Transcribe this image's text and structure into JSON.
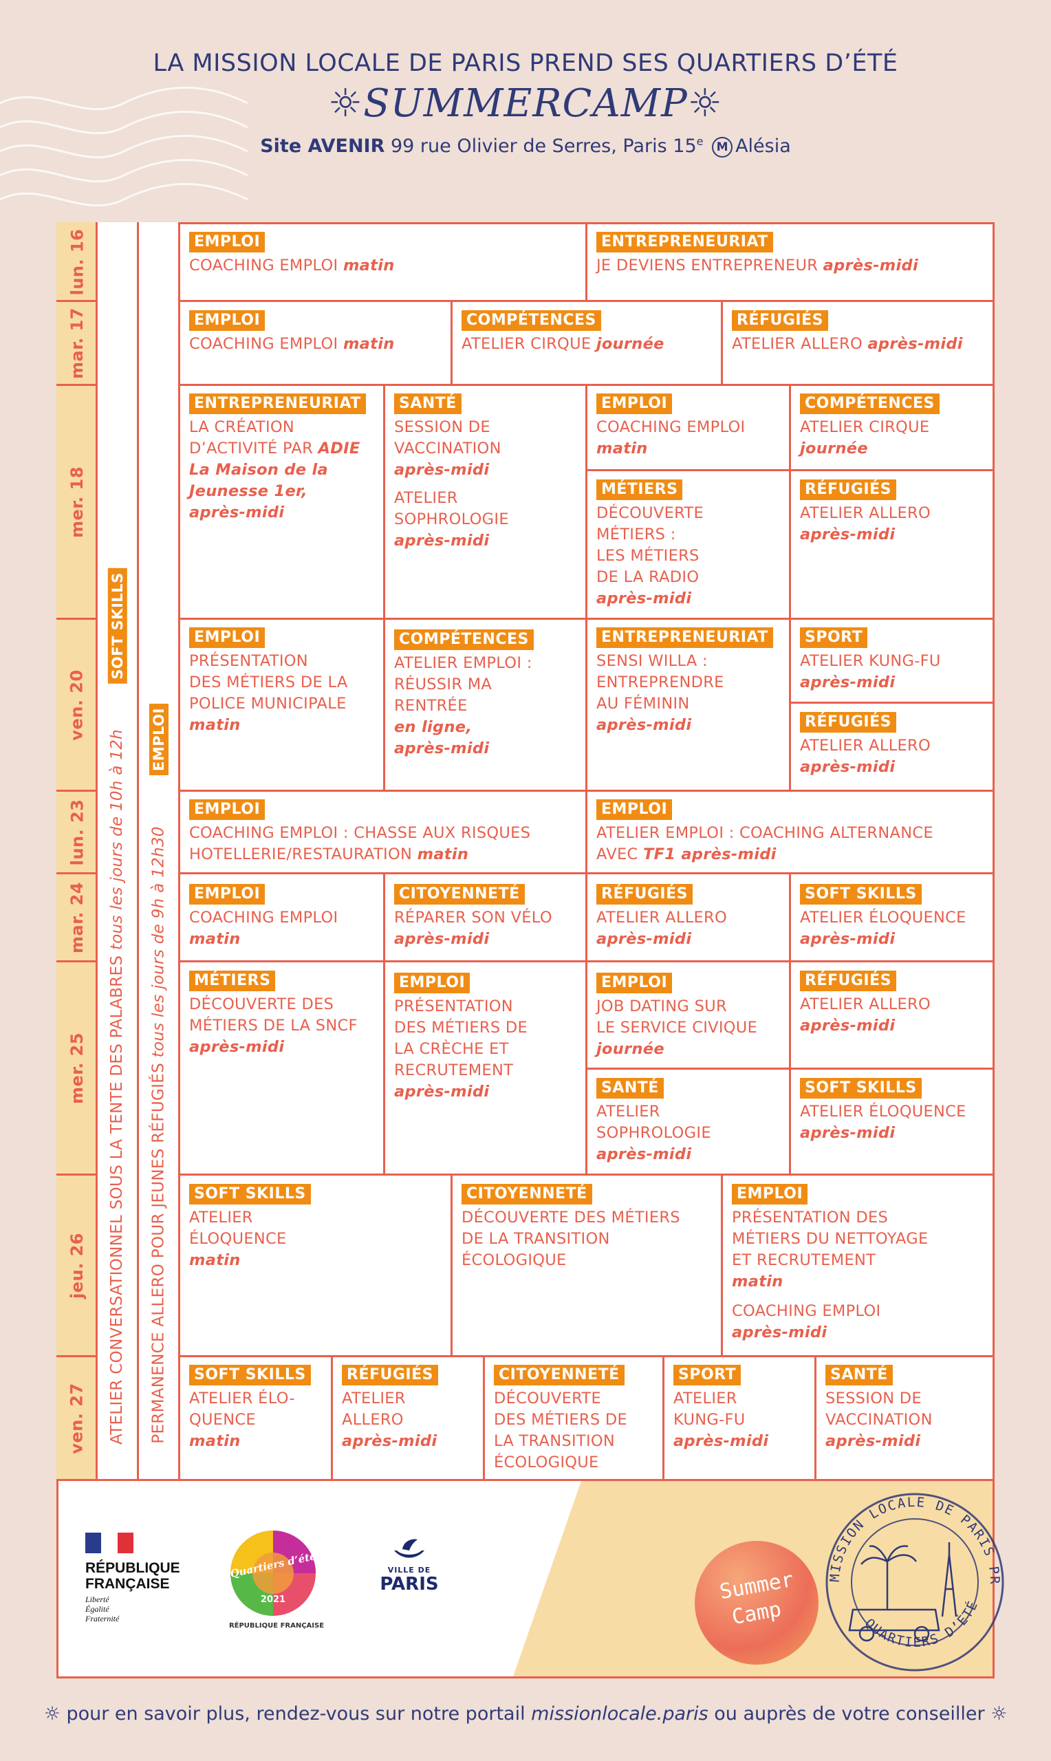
{
  "header": {
    "line1": "LA MISSION LOCALE DE PARIS PREND SES QUARTIERS D’ÉTÉ",
    "line2": "SUMMERCAMP",
    "site_bold": "Site AVENIR",
    "site_address": "99 rue Olivier de Serres, Paris 15",
    "site_sup": "e",
    "metro_letter": "M",
    "metro_station": "Alésia"
  },
  "days": [
    "lun. 16",
    "mar. 17",
    "mer. 18",
    "ven. 20",
    "lun. 23",
    "mar. 24",
    "mer. 25",
    "jeu. 26",
    "ven. 27"
  ],
  "side": {
    "col1_text": "ATELIER CONVERSATIONNEL SOUS LA TENTE DES PALABRES",
    "col1_italic": "tous les jours de 10h à 12h",
    "col1_tag": "SOFT SKILLS",
    "col2_text": "PERMANENCE ALLERO POUR JEUNES RÉFUGIÉS",
    "col2_italic": "tous les jours de 9h à 12h30",
    "col2_tag": "EMPLOI"
  },
  "cells": {
    "c1": {
      "tag": "EMPLOI",
      "text": "COACHING EMPLOI ",
      "it": "matin"
    },
    "c2": {
      "tag": "ENTREPRENEURIAT",
      "text": "JE DEVIENS ENTREPRENEUR ",
      "it": "après-midi"
    },
    "c3": {
      "tag": "EMPLOI",
      "text": "COACHING EMPLOI ",
      "it": "matin"
    },
    "c4": {
      "tag": "COMPÉTENCES",
      "text": "ATELIER CIRQUE ",
      "it": "journée"
    },
    "c5": {
      "tag": "RÉFUGIÉS",
      "text": "ATELIER ALLERO ",
      "it": "après-midi"
    },
    "c6": {
      "tag": "ENTREPRENEURIAT",
      "text": "LA CRÉATION\nD’ACTIVITÉ PAR ",
      "it": "ADIE\nLa Maison de la\nJeunesse 1er,\naprès-midi"
    },
    "c7": {
      "tag": "SANTÉ",
      "text": "SESSION DE\nVACCINATION\n",
      "it": "après-midi",
      "text2": "ATELIER\nSOPHROLOGIE\n",
      "it2": "après-midi"
    },
    "c8": {
      "tag": "EMPLOI",
      "text": "COACHING EMPLOI\n",
      "it": "matin"
    },
    "c9": {
      "tag": "COMPÉTENCES",
      "text": "ATELIER CIRQUE\n",
      "it": "journée"
    },
    "c10": {
      "tag": "MÉTIERS",
      "text": "DÉCOUVERTE\nMÉTIERS :\nLES MÉTIERS\nDE LA RADIO\n",
      "it": "après-midi"
    },
    "c11": {
      "tag": "RÉFUGIÉS",
      "text": "ATELIER ALLERO\n",
      "it": "après-midi"
    },
    "c12": {
      "tag": "EMPLOI",
      "text": "PRÉSENTATION\nDES MÉTIERS DE LA\nPOLICE MUNICIPALE\n",
      "it": "matin"
    },
    "c13": {
      "tag": "COMPÉTENCES",
      "text": "ATELIER EMPLOI :\nRÉUSSIR MA\nRENTRÉE\n",
      "it": "en ligne,\naprès-midi"
    },
    "c14": {
      "tag": "ENTREPRENEURIAT",
      "text": "SENSI WILLA :\nENTREPRENDRE\nAU FÉMININ\n",
      "it": "après-midi"
    },
    "c15": {
      "tag": "SPORT",
      "text": "ATELIER KUNG-FU\n",
      "it": "après-midi"
    },
    "c16": {
      "tag": "RÉFUGIÉS",
      "text": "ATELIER ALLERO\n",
      "it": "après-midi"
    },
    "c17": {
      "tag": "EMPLOI",
      "text": "COACHING EMPLOI : CHASSE AUX RISQUES\nHOTELLERIE/RESTAURATION ",
      "it": "matin"
    },
    "c18": {
      "tag": "EMPLOI",
      "text": "ATELIER EMPLOI : COACHING ALTERNANCE\nAVEC ",
      "it": "TF1 après-midi"
    },
    "c19": {
      "tag": "EMPLOI",
      "text": "COACHING EMPLOI\n",
      "it": "matin"
    },
    "c20": {
      "tag": "CITOYENNETÉ",
      "text": "RÉPARER SON VÉLO\n",
      "it": "après-midi"
    },
    "c21": {
      "tag": "RÉFUGIÉS",
      "text": "ATELIER ALLERO\n",
      "it": "après-midi"
    },
    "c22": {
      "tag": "SOFT SKILLS",
      "text": "ATELIER ÉLOQUENCE\n",
      "it": "après-midi"
    },
    "c23": {
      "tag": "MÉTIERS",
      "text": "DÉCOUVERTE DES\nMÉTIERS DE LA SNCF\n",
      "it": "après-midi"
    },
    "c24": {
      "tag": "EMPLOI",
      "text": "PRÉSENTATION\nDES MÉTIERS DE\nLA CRÈCHE ET\nRECRUTEMENT\n",
      "it": "après-midi"
    },
    "c25": {
      "tag": "EMPLOI",
      "text": "JOB DATING SUR\nLE SERVICE CIVIQUE\n",
      "it": "journée"
    },
    "c26": {
      "tag": "RÉFUGIÉS",
      "text": "ATELIER ALLERO\n",
      "it": "après-midi"
    },
    "c27": {
      "tag": "SANTÉ",
      "text": "ATELIER\nSOPHROLOGIE\n",
      "it": "après-midi"
    },
    "c28": {
      "tag": "SOFT SKILLS",
      "text": "ATELIER ÉLOQUENCE\n",
      "it": "après-midi"
    },
    "c29": {
      "tag": "SOFT SKILLS",
      "text": "ATELIER\nÉLOQUENCE\n",
      "it": "matin"
    },
    "c30": {
      "tag": "CITOYENNETÉ",
      "text": "DÉCOUVERTE DES MÉTIERS\nDE LA TRANSITION\nÉCOLOGIQUE",
      "it": ""
    },
    "c31": {
      "tag": "EMPLOI",
      "text": "PRÉSENTATION DES\nMÉTIERS DU NETTOYAGE\nET RECRUTEMENT\n",
      "it": "matin",
      "text2": "COACHING EMPLOI\n",
      "it2": "après-midi"
    },
    "c32": {
      "tag": "SOFT SKILLS",
      "text": "ATELIER ÉLO-\nQUENCE\n",
      "it": "matin"
    },
    "c33": {
      "tag": "RÉFUGIÉS",
      "text": "ATELIER\nALLERO\n",
      "it": "après-midi"
    },
    "c34": {
      "tag": "CITOYENNETÉ",
      "text": "DÉCOUVERTE\nDES MÉTIERS DE\nLA TRANSITION\nÉCOLOGIQUE",
      "it": ""
    },
    "c35": {
      "tag": "SPORT",
      "text": "ATELIER\nKUNG-FU\n",
      "it": "après-midi"
    },
    "c36": {
      "tag": "SANTÉ",
      "text": "SESSION DE\nVACCINATION\n",
      "it": "après-midi"
    }
  },
  "logos": {
    "rf_line1": "RÉPUBLIQUE",
    "rf_line2": "FRANÇAISE",
    "rf_motto1": "Liberté",
    "rf_motto2": "Égalité",
    "rf_motto3": "Fraternité",
    "qe_title": "Quartiers d’été",
    "qe_year": "2021",
    "qe_sub": "RÉPUBLIQUE FRANÇAISE",
    "vp_small1": "VILLE DE",
    "vp_big": "PARIS",
    "sc_line1": "Summer",
    "sc_line2": "Camp",
    "stamp_top": "MISSION LOCALE DE PARIS PREND",
    "stamp_bottom": "QUARTIERS D’ÉTÉ"
  },
  "footer": {
    "text1": "pour en savoir plus, rendez-vous sur notre portail ",
    "link": "missionlocale.paris",
    "text2": " ou auprès de votre conseiller"
  },
  "colors": {
    "accent": "#e8604d",
    "tag": "#f08c14",
    "navy": "#2f3a78",
    "sand": "#f8dca5",
    "bg": "#efdfd6"
  }
}
